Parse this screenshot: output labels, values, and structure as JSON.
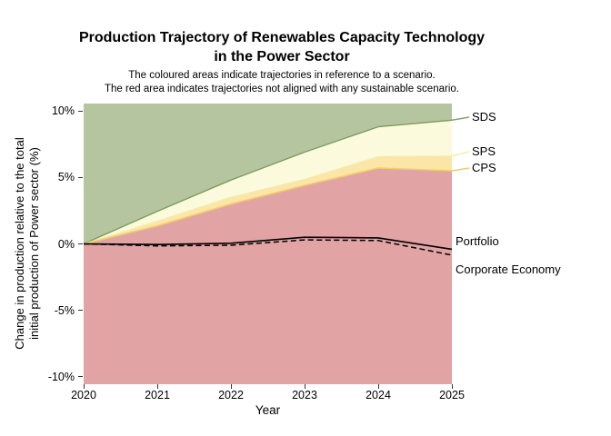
{
  "title": {
    "line1": "Production Trajectory of Renewables Capacity Technology",
    "line2": "in the Power Sector"
  },
  "subtitle": {
    "line1": "The coloured areas indicate trajectories in reference to a scenario.",
    "line2": "The red area indicates trajectories not aligned with any sustainable scenario."
  },
  "chart_data": {
    "type": "area",
    "x": [
      2020,
      2021,
      2022,
      2023,
      2024,
      2025
    ],
    "xlabel": "Year",
    "ylabel": "Change in production relative to the total initial production of Power sector (%)",
    "ylabel_lines": [
      "Change in production relative to the total",
      "initial production of Power sector (%)"
    ],
    "ylim": [
      -10.55,
      10.55
    ],
    "yticks": [
      {
        "value": 10,
        "label": "10%"
      },
      {
        "value": 5,
        "label": "5%"
      },
      {
        "value": 0,
        "label": "0%"
      },
      {
        "value": -5,
        "label": "-5%"
      },
      {
        "value": -10,
        "label": "-10%"
      }
    ],
    "xtick_labels": [
      "2020",
      "2021",
      "2022",
      "2023",
      "2024",
      "2025"
    ],
    "legend_position": "right-outside",
    "grid": false,
    "series": [
      {
        "name": "SDS",
        "kind": "scenario-boundary",
        "values": [
          0,
          2.45,
          4.8,
          6.9,
          8.8,
          9.3
        ],
        "line_color": "#7d9c5e",
        "area_above_color": "#b4c5a0",
        "leader_color": "#85a368"
      },
      {
        "name": "SPS",
        "kind": "scenario-boundary",
        "values": [
          0,
          1.7,
          3.5,
          4.85,
          6.55,
          6.6
        ],
        "line_color": "#f3ecae",
        "area_above_color": "#fcfadc",
        "leader_color": "#f3ecae"
      },
      {
        "name": "CPS",
        "kind": "scenario-boundary",
        "values": [
          0,
          1.35,
          3.0,
          4.4,
          5.7,
          5.5
        ],
        "line_color": "#f1cd6b",
        "area_above_color": "#fbe5a7",
        "area_below_color": "#e1a3a3",
        "leader_color": "#efcb69"
      },
      {
        "name": "Portfolio",
        "kind": "line",
        "dash": "solid",
        "color": "#000000",
        "values": [
          0,
          -0.05,
          0.05,
          0.5,
          0.45,
          -0.4
        ]
      },
      {
        "name": "Corporate Economy",
        "kind": "line",
        "dash": "dashed",
        "color": "#000000",
        "values": [
          0,
          -0.15,
          -0.1,
          0.3,
          0.25,
          -0.85
        ]
      }
    ]
  }
}
